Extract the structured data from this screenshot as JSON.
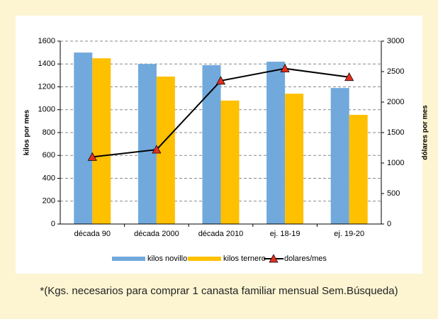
{
  "chart_data": {
    "type": "bar",
    "categories": [
      "década 90",
      "década 2000",
      "década 2010",
      "ej. 18-19",
      "ej. 19-20"
    ],
    "series": [
      {
        "name": "kilos novillo",
        "color": "#71a9dc",
        "values": [
          1500,
          1400,
          1390,
          1420,
          1190
        ]
      },
      {
        "name": "kilos ternero",
        "color": "#ffc000",
        "values": [
          1450,
          1290,
          1080,
          1140,
          955
        ]
      },
      {
        "name": "dolares/mes",
        "color": "#000000",
        "marker_color": "#e03020",
        "type": "line",
        "axis": "y2",
        "values": [
          1100,
          1220,
          2350,
          2550,
          2410
        ]
      }
    ],
    "ylabel": "kilos por mes",
    "y2label": "dólares por mes",
    "ylim": [
      0,
      1600
    ],
    "yticks": [
      0,
      200,
      400,
      600,
      800,
      1000,
      1200,
      1400,
      1600
    ],
    "y2lim": [
      0,
      3000
    ],
    "y2ticks": [
      0,
      500,
      1000,
      1500,
      2000,
      2500,
      3000
    ],
    "grid": true,
    "legend": "bottom",
    "footnote": "*(Kgs. necesarios para comprar 1 canasta familiar mensual Sem.Búsqueda)"
  }
}
